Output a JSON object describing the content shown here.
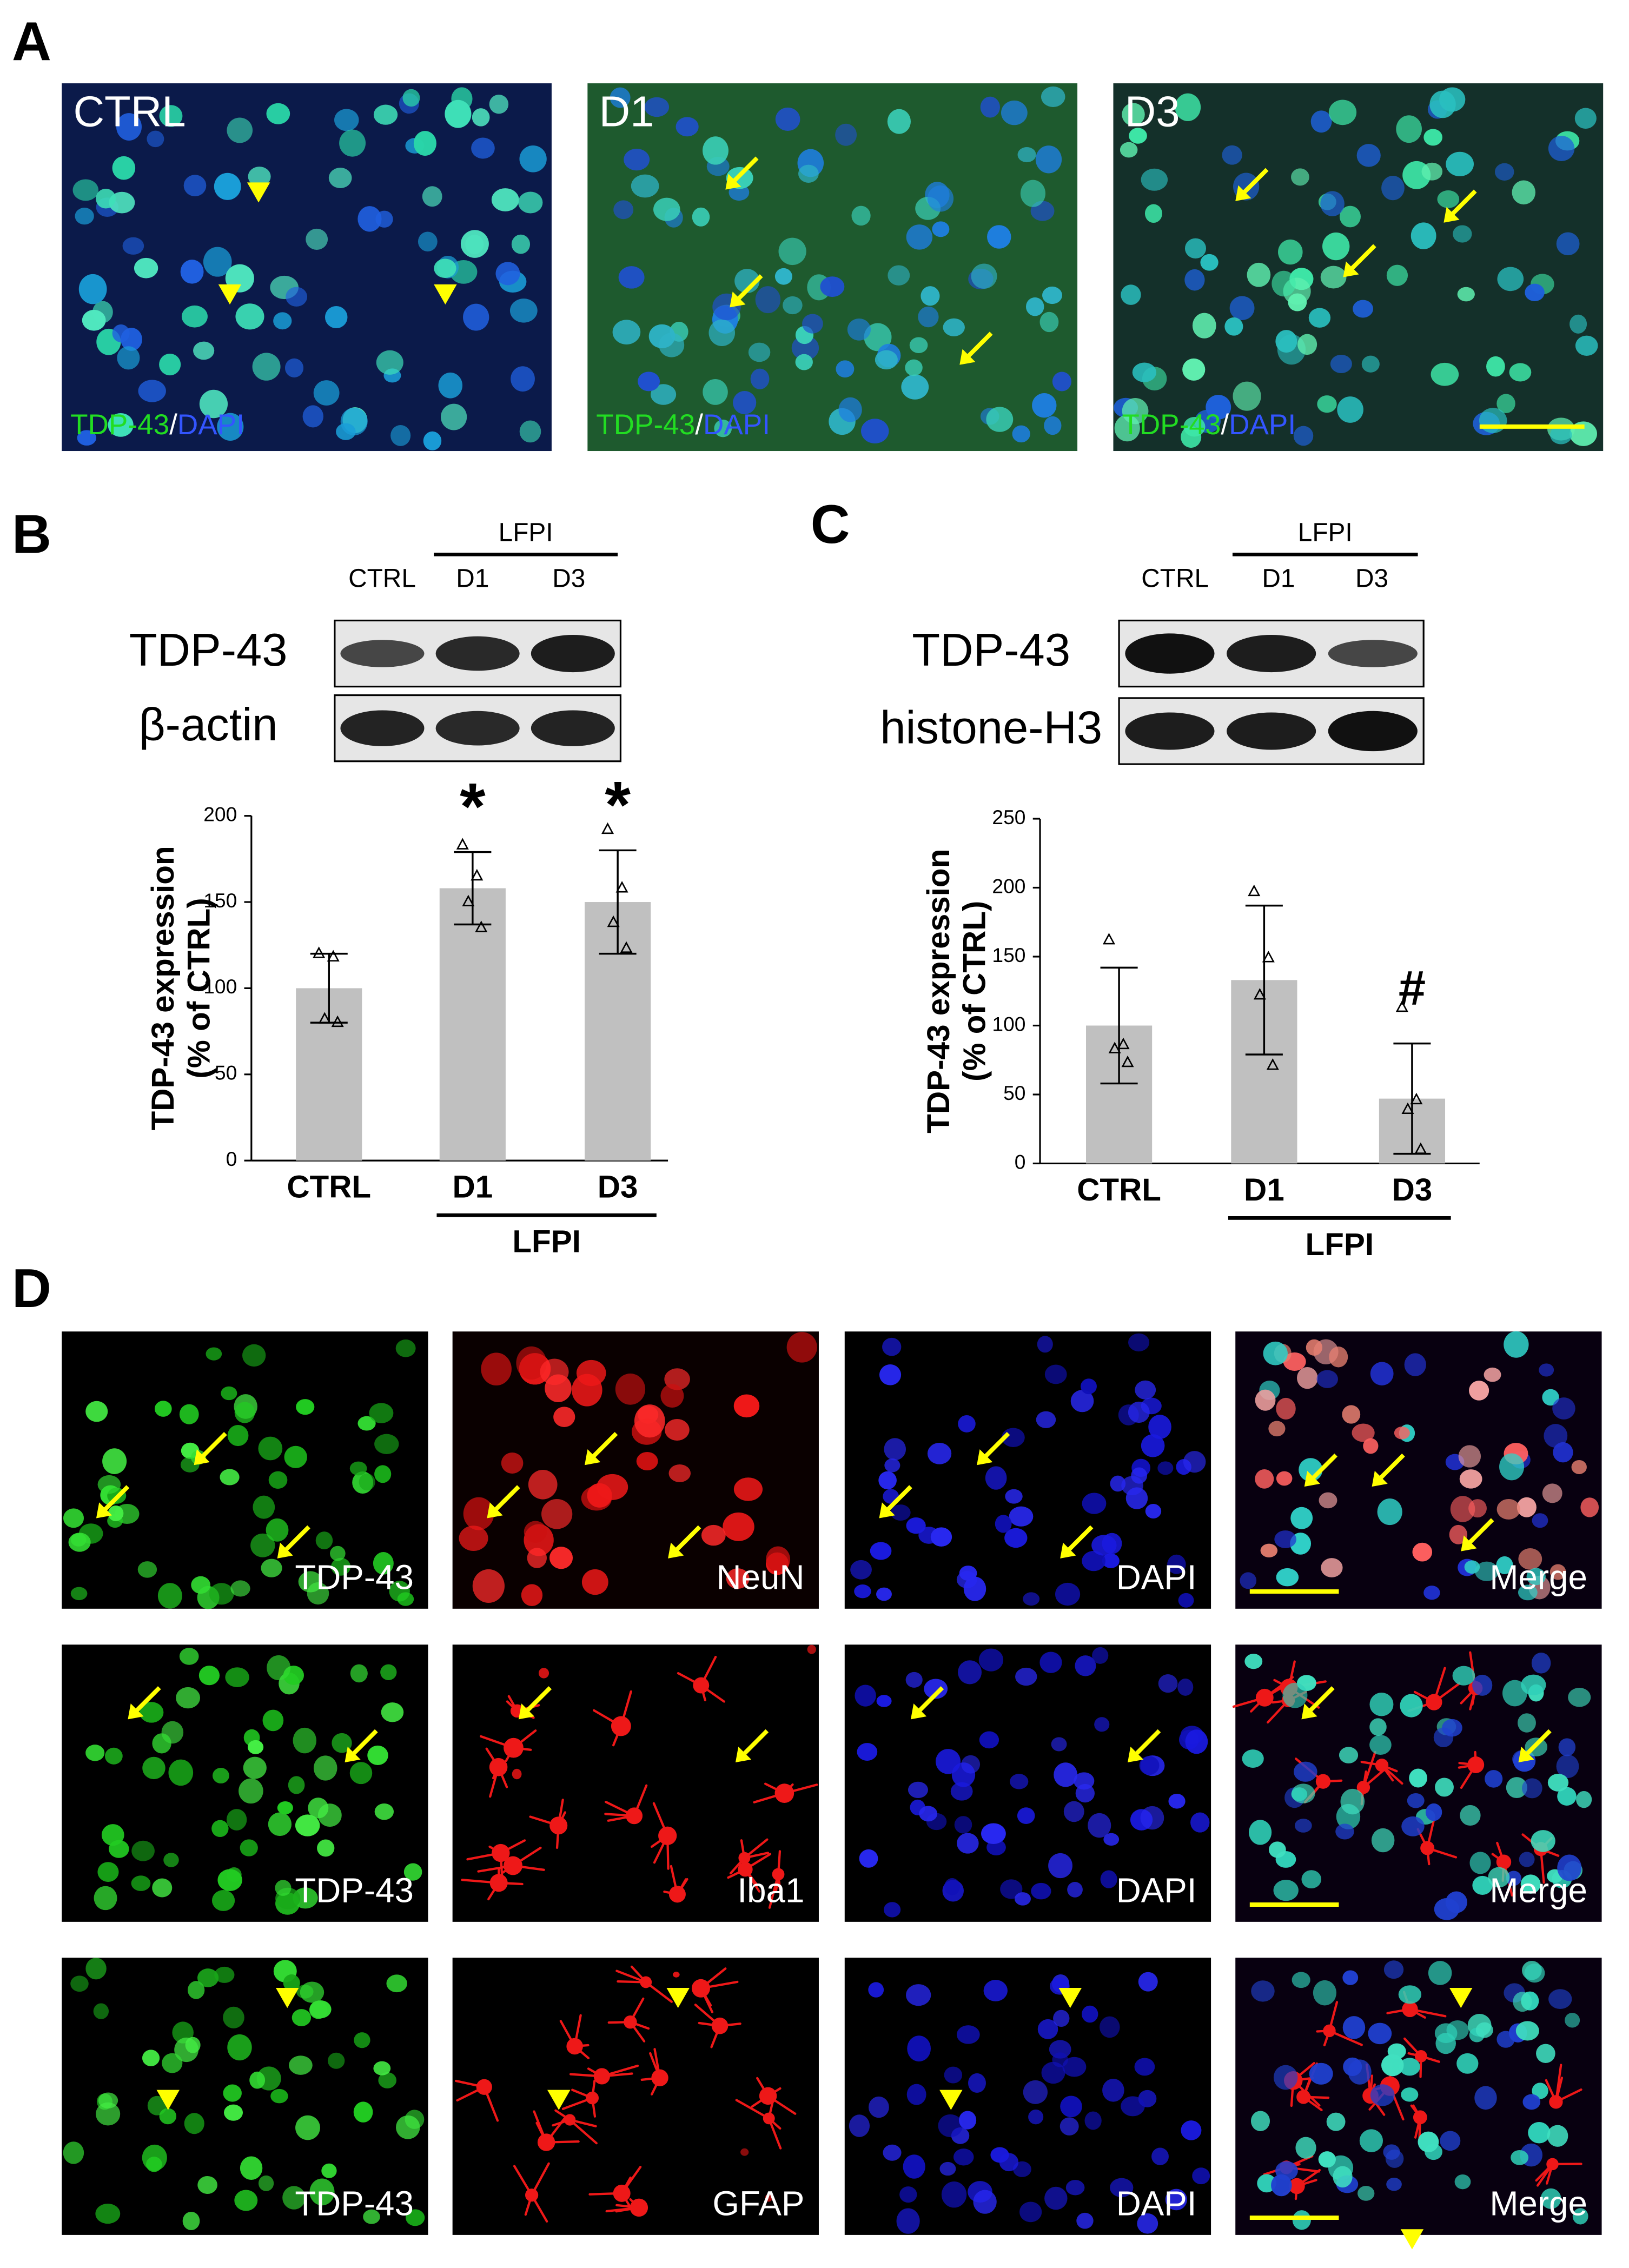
{
  "panel_labels": [
    "A",
    "B",
    "C",
    "D"
  ],
  "panel_a": [
    {
      "label": "CTRL",
      "stain": [
        "TDP-43",
        "/",
        "DAPI"
      ]
    },
    {
      "label": "D1",
      "stain": [
        "TDP-43",
        "/",
        "DAPI"
      ]
    },
    {
      "label": "D3",
      "stain": [
        "TDP-43",
        "/",
        "DAPI"
      ]
    }
  ],
  "blots": [
    {
      "lanes": [
        "CTRL",
        "D1",
        "D3"
      ],
      "group": "LFPI",
      "rows": [
        "TDP-43",
        "β-actin"
      ]
    },
    {
      "lanes": [
        "CTRL",
        "D1",
        "D3"
      ],
      "group": "LFPI",
      "rows": [
        "TDP-43",
        "histone-H3"
      ]
    }
  ],
  "chart_data": [
    {
      "type": "bar",
      "ylabel": [
        "TDP-43 expression",
        "(% of CTRL)"
      ],
      "categories": [
        "CTRL",
        "D1",
        "D3"
      ],
      "values": [
        100,
        158,
        150
      ],
      "errors": [
        20,
        21,
        30
      ],
      "points": [
        [
          120,
          118,
          82,
          80
        ],
        [
          183,
          165,
          150,
          135
        ],
        [
          192,
          158,
          138,
          123
        ]
      ],
      "color": "#c0c0c0",
      "ylim": [
        0,
        200
      ],
      "yticks": [
        0,
        50,
        100,
        150,
        200
      ],
      "group": {
        "label": "LFPI",
        "categories": [
          "D1",
          "D3"
        ]
      },
      "annotations": [
        {
          "text": "*",
          "category": "D1"
        },
        {
          "text": "*",
          "category": "D3"
        }
      ]
    },
    {
      "type": "bar",
      "ylabel": [
        "TDP-43 expression",
        "(% of CTRL)"
      ],
      "categories": [
        "CTRL",
        "D1",
        "D3"
      ],
      "values": [
        100,
        133,
        47
      ],
      "errors": [
        42,
        54,
        40
      ],
      "points": [
        [
          162,
          86,
          83,
          73
        ],
        [
          197,
          149,
          122,
          71
        ],
        [
          113,
          46,
          39,
          10
        ]
      ],
      "color": "#c0c0c0",
      "ylim": [
        0,
        250
      ],
      "yticks": [
        0,
        50,
        100,
        150,
        200,
        250
      ],
      "group": {
        "label": "LFPI",
        "categories": [
          "D1",
          "D3"
        ]
      },
      "annotations": [
        {
          "text": "#",
          "category": "D3"
        }
      ]
    }
  ],
  "panel_d": {
    "rows": [
      [
        "TDP-43",
        "NeuN",
        "DAPI",
        "Merge"
      ],
      [
        "TDP-43",
        "Iba1",
        "DAPI",
        "Merge"
      ],
      [
        "TDP-43",
        "GFAP",
        "DAPI",
        "Merge"
      ]
    ]
  }
}
